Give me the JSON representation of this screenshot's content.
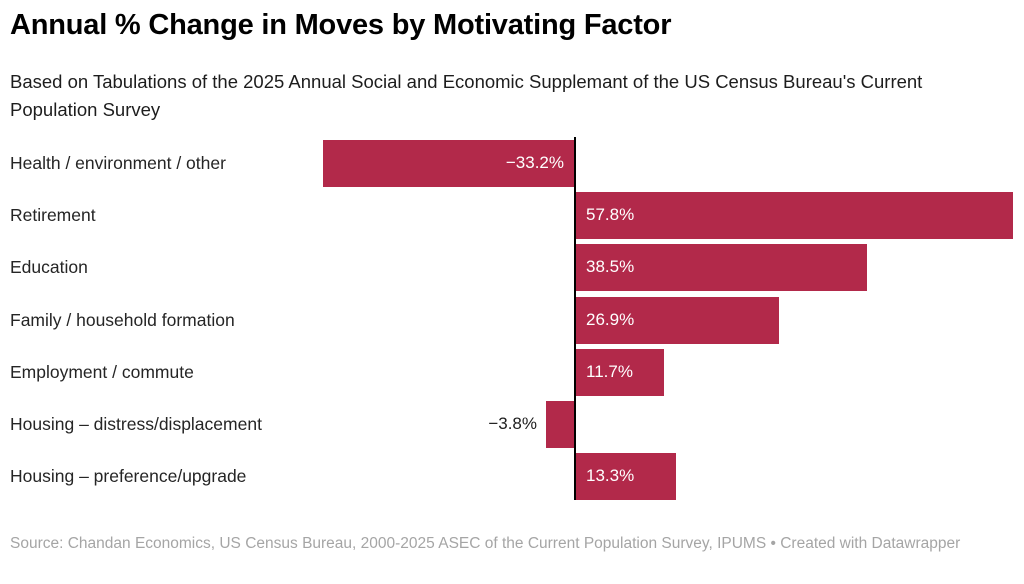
{
  "header": {
    "title": "Annual % Change in Moves by Motivating Factor",
    "subtitle": "Based on Tabulations of the 2025 Annual Social and Economic Supplemant of the US Census Bureau's Current Population Survey"
  },
  "chart_data": {
    "type": "bar",
    "orientation": "horizontal",
    "title": "Annual % Change in Moves by Motivating Factor",
    "categories": [
      "Health / environment / other",
      "Retirement",
      "Education",
      "Family / household formation",
      "Employment / commute",
      "Housing – distress/displacement",
      "Housing – preference/upgrade"
    ],
    "values": [
      -33.2,
      57.8,
      38.5,
      26.9,
      11.7,
      -3.8,
      13.3
    ],
    "value_labels": [
      "−33.2%",
      "57.8%",
      "38.5%",
      "26.9%",
      "11.7%",
      "−3.8%",
      "13.3%"
    ],
    "xlabel": "",
    "ylabel": "",
    "xlim": [
      -33.2,
      57.8
    ],
    "grid": false,
    "legend": false,
    "zero_axis": true,
    "bar_color": "#b2294a",
    "value_label_inside_color": "#ffffff",
    "value_label_outside_color": "#1d1d1d",
    "axis_color": "#000000"
  },
  "footer": {
    "source": "Source: Chandan Economics, US Census Bureau, 2000-2025 ASEC of the Current Population Survey, IPUMS • Created with Datawrapper"
  }
}
